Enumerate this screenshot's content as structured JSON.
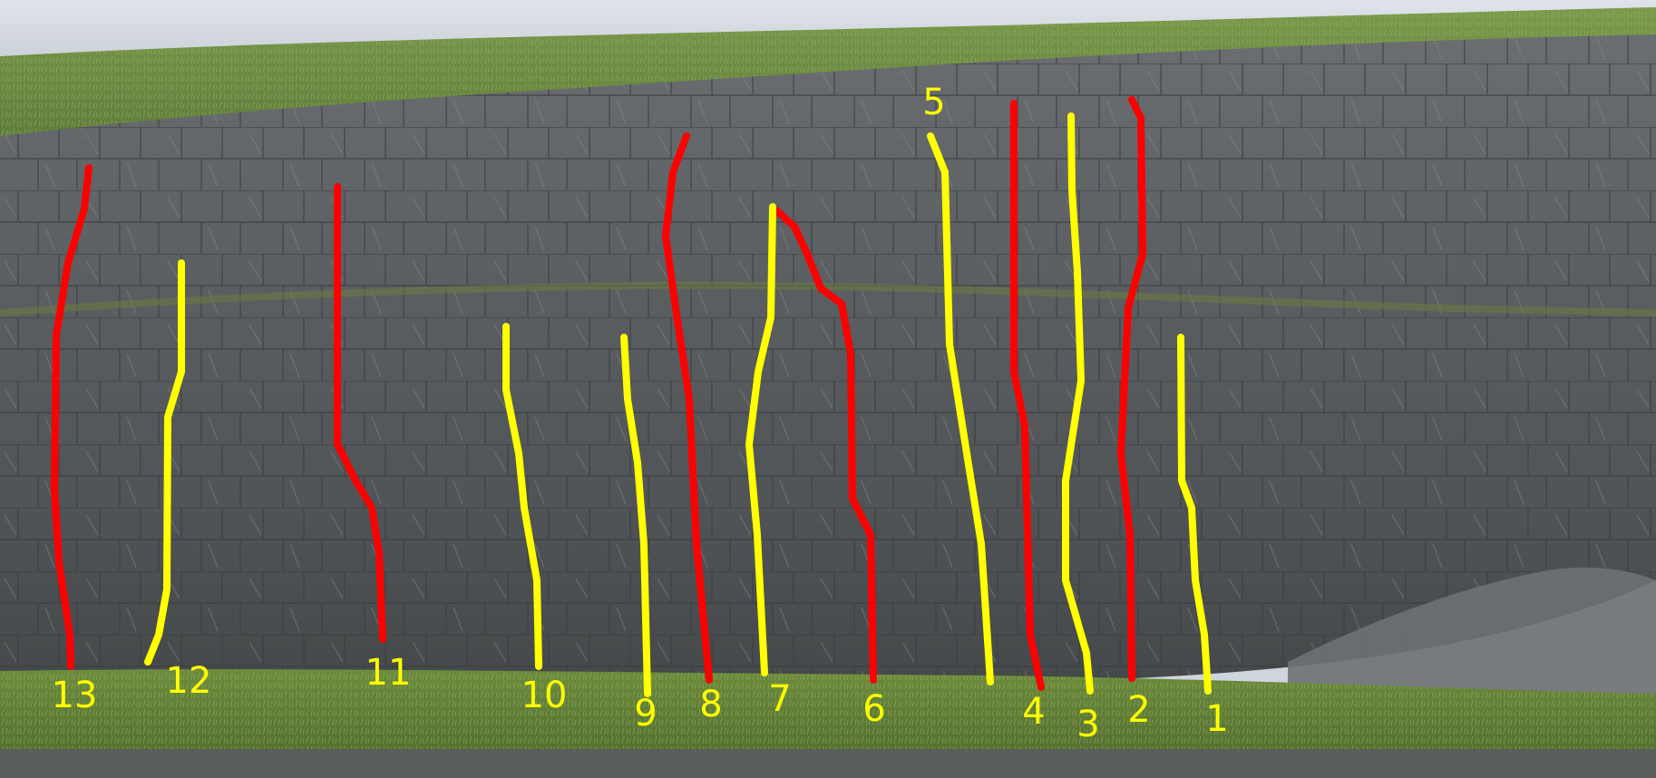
{
  "routes": [
    {
      "label": "1",
      "color": "#ffff00"
    },
    {
      "label": "2",
      "color": "#ff0000"
    },
    {
      "label": "3",
      "color": "#ffff00"
    },
    {
      "label": "4",
      "color": "#ff0000"
    },
    {
      "label": "5",
      "color": "#ffff00"
    },
    {
      "label": "6",
      "color": "#ff0000"
    },
    {
      "label": "7",
      "color": "#ffff00"
    },
    {
      "label": "8",
      "color": "#ff0000"
    },
    {
      "label": "9",
      "color": "#ffff00"
    },
    {
      "label": "10",
      "color": "#ffff00"
    },
    {
      "label": "11",
      "color": "#ff0000"
    },
    {
      "label": "12",
      "color": "#ffff00"
    },
    {
      "label": "13",
      "color": "#ff0000"
    }
  ],
  "label_color": "#ffff00"
}
